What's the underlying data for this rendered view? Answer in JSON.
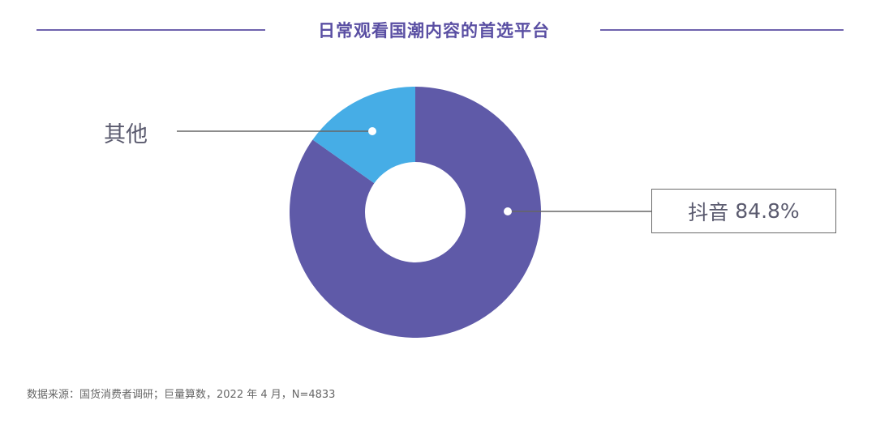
{
  "title": "日常观看国潮内容的首选平台",
  "source_note": "数据来源：国货消费者调研；巨量算数，2022 年 4 月，N=4833",
  "colors": {
    "title": "#5a4fa3",
    "rule": "#6f63ad",
    "douyin": "#5f5aa8",
    "other": "#46ade6",
    "label": "#5a5a6e"
  },
  "chart_data": {
    "type": "pie",
    "donut": true,
    "title": "日常观看国潮内容的首选平台",
    "slices": [
      {
        "name": "抖音",
        "value": 84.8,
        "label": "84.8%",
        "color": "#5f5aa8"
      },
      {
        "name": "其他",
        "value": 15.2,
        "label": "",
        "color": "#46ade6"
      }
    ],
    "legend": "callouts"
  }
}
